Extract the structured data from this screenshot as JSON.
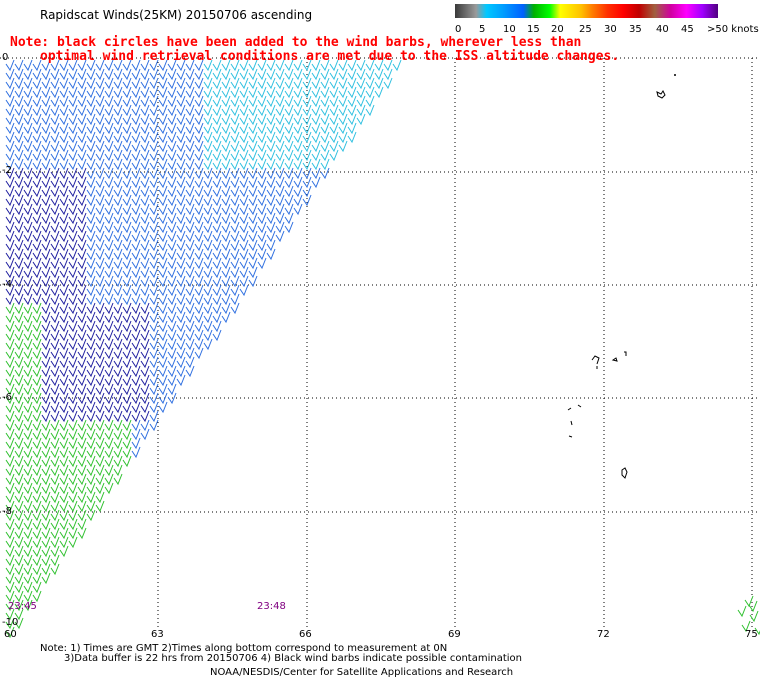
{
  "title": "Rapidscat Winds(25KM) 20150706 ascending",
  "note_line1": "Note: black circles have been added to the wind barbs, wherever less than",
  "note_line2": "optimal wind retrieval conditions are met due to the ISS altitude changes.",
  "legend": {
    "labels": [
      "0",
      "5",
      "10",
      "15",
      "20",
      "25",
      "30",
      "35",
      "40",
      "45",
      ">50 knots"
    ],
    "colors": [
      "#4a4a4a",
      "#9a9a9a",
      "#00b0ff",
      "#00a0ff",
      "#0060ff",
      "#00c000",
      "#00ff00",
      "#ffff00",
      "#ffc000",
      "#ff8000",
      "#ff4000",
      "#ff0000",
      "#d00000",
      "#a06040",
      "#d00080",
      "#ff00ff",
      "#a000ff",
      "#6000a0"
    ]
  },
  "x_ticks": [
    "60",
    "63",
    "66",
    "69",
    "72",
    "75"
  ],
  "y_ticks": [
    "0",
    "-2",
    "-4",
    "-6",
    "-8",
    "-10"
  ],
  "times": [
    "23:45",
    "23:48"
  ],
  "footer": {
    "line1": "Note: 1) Times are GMT 2)Times along bottom correspond to measurement at 0N",
    "line2": "3)Data buffer is 22 hrs from 20150706 4) Black wind barbs indicate possible contamination",
    "line3": "NOAA/NESDIS/Center for Satellite Applications and Research"
  }
}
